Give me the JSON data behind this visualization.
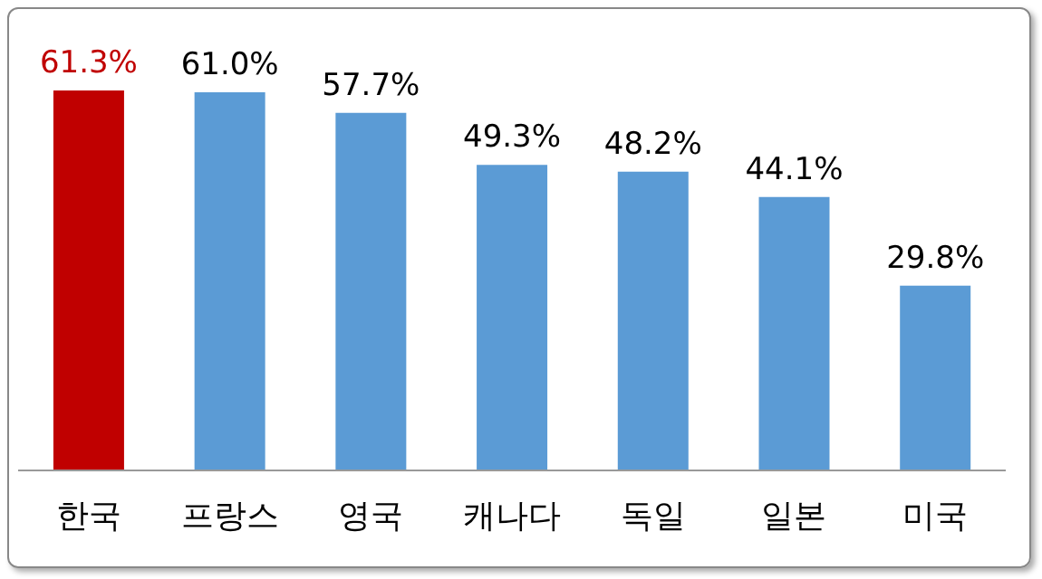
{
  "chart_data": {
    "type": "bar",
    "categories": [
      "한국",
      "프랑스",
      "영국",
      "캐나다",
      "독일",
      "일본",
      "미국"
    ],
    "values": [
      61.3,
      61.0,
      57.7,
      49.3,
      48.2,
      44.1,
      29.8
    ],
    "value_labels": [
      "61.3%",
      "61.0%",
      "57.7%",
      "49.3%",
      "48.2%",
      "44.1%",
      "29.8%"
    ],
    "colors": [
      "#c00000",
      "#5b9bd5",
      "#5b9bd5",
      "#5b9bd5",
      "#5b9bd5",
      "#5b9bd5",
      "#5b9bd5"
    ],
    "grid": false,
    "legend": false
  }
}
